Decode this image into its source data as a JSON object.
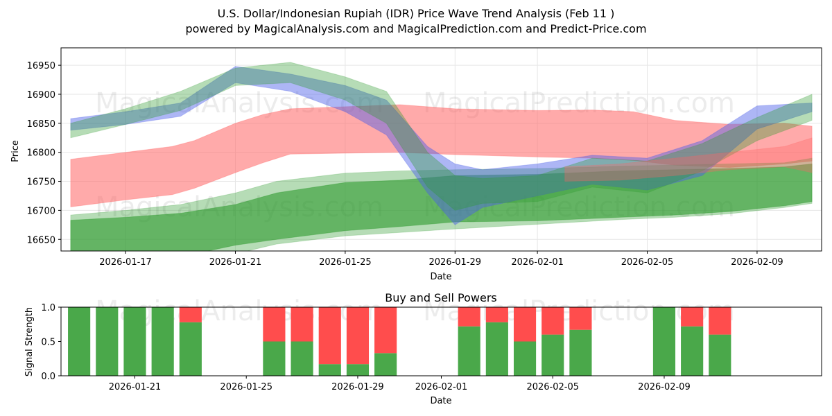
{
  "header": {
    "title": "U.S. Dollar/Indonesian Rupiah (IDR) Price Wave Trend Analysis (Feb 11 )",
    "subtitle": "powered by MagicalAnalysis.com and MagicalPrediction.com and Predict-Price.com"
  },
  "watermarks": {
    "analysis": "MagicalAnalysis.com",
    "prediction": "MagicalPrediction.com"
  },
  "colors": {
    "blue": "#4a5ee8",
    "green": "#2e9a2e",
    "red": "#ff6464",
    "bar_buy": "#4aa84a",
    "bar_sell": "#ff4d4d",
    "grid": "#e6e6e6"
  },
  "chart_data": [
    {
      "type": "area",
      "title": "",
      "xlabel": "Date",
      "ylabel": "Price",
      "x_start": "2026-01-15",
      "x_range_days": [
        -0.35,
        27.35
      ],
      "ylim": [
        16630,
        16980
      ],
      "x_ticks": [
        {
          "day": 2,
          "label": "2026-01-17"
        },
        {
          "day": 6,
          "label": "2026-01-21"
        },
        {
          "day": 10,
          "label": "2026-01-25"
        },
        {
          "day": 14,
          "label": "2026-01-29"
        },
        {
          "day": 17,
          "label": "2026-02-01"
        },
        {
          "day": 21,
          "label": "2026-02-05"
        },
        {
          "day": 25,
          "label": "2026-02-09"
        }
      ],
      "y_ticks": [
        16650,
        16700,
        16750,
        16800,
        16850,
        16900,
        16950
      ],
      "bands": [
        {
          "name": "red-wave",
          "color": "red",
          "opacity": 0.55,
          "x": [
            0,
            2,
            3.7,
            4.5,
            6,
            7,
            8,
            12,
            14,
            17,
            19,
            20.5,
            22,
            24,
            26,
            27
          ],
          "upper": [
            16788,
            16800,
            16810,
            16820,
            16850,
            16865,
            16875,
            16882,
            16875,
            16872,
            16873,
            16870,
            16855,
            16848,
            16850,
            16845
          ],
          "lower": [
            16706,
            16718,
            16727,
            16738,
            16765,
            16782,
            16797,
            16800,
            16796,
            16792,
            16790,
            16786,
            16778,
            16774,
            16780,
            16785
          ]
        },
        {
          "name": "green-wave-low",
          "color": "green",
          "opacity": 0.6,
          "x": [
            0,
            2,
            4,
            6,
            7.5,
            10,
            12,
            14,
            17,
            20,
            22,
            24,
            26,
            27
          ],
          "upper": [
            16683,
            16688,
            16695,
            16710,
            16730,
            16748,
            16752,
            16760,
            16762,
            16768,
            16770,
            16772,
            16775,
            16780
          ],
          "lower": [
            16620,
            16615,
            16620,
            16640,
            16650,
            16665,
            16672,
            16680,
            16682,
            16688,
            16692,
            16698,
            16708,
            16715
          ]
        },
        {
          "name": "green-wave-wide",
          "color": "green",
          "opacity": 0.35,
          "x": [
            0,
            2,
            4,
            6,
            7.5,
            10,
            12,
            14,
            17,
            20,
            22,
            24,
            26,
            27
          ],
          "upper": [
            16692,
            16700,
            16710,
            16730,
            16750,
            16764,
            16768,
            16770,
            16772,
            16776,
            16778,
            16780,
            16782,
            16790
          ],
          "lower": [
            16610,
            16608,
            16612,
            16625,
            16642,
            16656,
            16662,
            16668,
            16676,
            16684,
            16688,
            16694,
            16705,
            16712
          ]
        },
        {
          "name": "blue-wave",
          "color": "blue",
          "opacity": 0.45,
          "x": [
            0,
            2,
            4,
            6,
            8,
            10,
            11.5,
            13,
            14,
            15,
            17,
            19,
            21,
            23,
            25,
            27
          ],
          "upper": [
            16858,
            16870,
            16885,
            16948,
            16935,
            16915,
            16890,
            16810,
            16780,
            16770,
            16780,
            16795,
            16790,
            16820,
            16880,
            16885
          ],
          "lower": [
            16838,
            16848,
            16862,
            16920,
            16905,
            16870,
            16830,
            16730,
            16675,
            16705,
            16725,
            16745,
            16735,
            16760,
            16840,
            16870
          ]
        },
        {
          "name": "green-wave-high",
          "color": "green",
          "opacity": 0.35,
          "x": [
            0,
            2,
            4,
            6,
            8,
            10,
            11.5,
            13,
            14,
            15,
            17,
            19,
            21,
            23,
            25,
            27
          ],
          "upper": [
            16850,
            16875,
            16905,
            16945,
            16955,
            16930,
            16905,
            16800,
            16760,
            16755,
            16760,
            16790,
            16785,
            16815,
            16860,
            16900
          ],
          "lower": [
            16825,
            16848,
            16872,
            16915,
            16920,
            16890,
            16850,
            16740,
            16700,
            16712,
            16715,
            16740,
            16730,
            16768,
            16820,
            16855
          ]
        },
        {
          "name": "brown-wave",
          "color": "red",
          "opacity": 0.35,
          "x": [
            18,
            20,
            22,
            24,
            26,
            27
          ],
          "upper": [
            16775,
            16780,
            16790,
            16800,
            16810,
            16825
          ],
          "lower": [
            16750,
            16752,
            16760,
            16770,
            16775,
            16765
          ]
        }
      ]
    },
    {
      "type": "bar",
      "title": "Buy and Sell Powers",
      "xlabel": "Date",
      "ylabel": "Signal Strength",
      "x_start": "2026-01-15",
      "x_range_days": [
        3.35,
        30.65
      ],
      "ylim": [
        0,
        1.0
      ],
      "y_ticks": [
        {
          "value": 0.0,
          "label": "0.0"
        },
        {
          "value": 0.5,
          "label": "0.5"
        },
        {
          "value": 1.0,
          "label": "1.0"
        }
      ],
      "x_ticks": [
        {
          "day": 6,
          "label": "2026-01-21"
        },
        {
          "day": 10,
          "label": "2026-01-25"
        },
        {
          "day": 14,
          "label": "2026-01-29"
        },
        {
          "day": 17,
          "label": "2026-02-01"
        },
        {
          "day": 21,
          "label": "2026-02-05"
        },
        {
          "day": 25,
          "label": "2026-02-09"
        }
      ],
      "bars": [
        {
          "day": 4,
          "buy": 1.0
        },
        {
          "day": 5,
          "buy": 1.0
        },
        {
          "day": 6,
          "buy": 1.0
        },
        {
          "day": 7,
          "buy": 1.0
        },
        {
          "day": 8,
          "buy": 0.78
        },
        {
          "day": 11,
          "buy": 0.5
        },
        {
          "day": 12,
          "buy": 0.5
        },
        {
          "day": 13,
          "buy": 0.17
        },
        {
          "day": 14,
          "buy": 0.17
        },
        {
          "day": 15,
          "buy": 0.33
        },
        {
          "day": 18,
          "buy": 0.72
        },
        {
          "day": 19,
          "buy": 0.78
        },
        {
          "day": 20,
          "buy": 0.5
        },
        {
          "day": 21,
          "buy": 0.6
        },
        {
          "day": 22,
          "buy": 0.67
        },
        {
          "day": 25,
          "buy": 1.0
        },
        {
          "day": 26,
          "buy": 0.72
        },
        {
          "day": 27,
          "buy": 0.6
        }
      ]
    }
  ]
}
